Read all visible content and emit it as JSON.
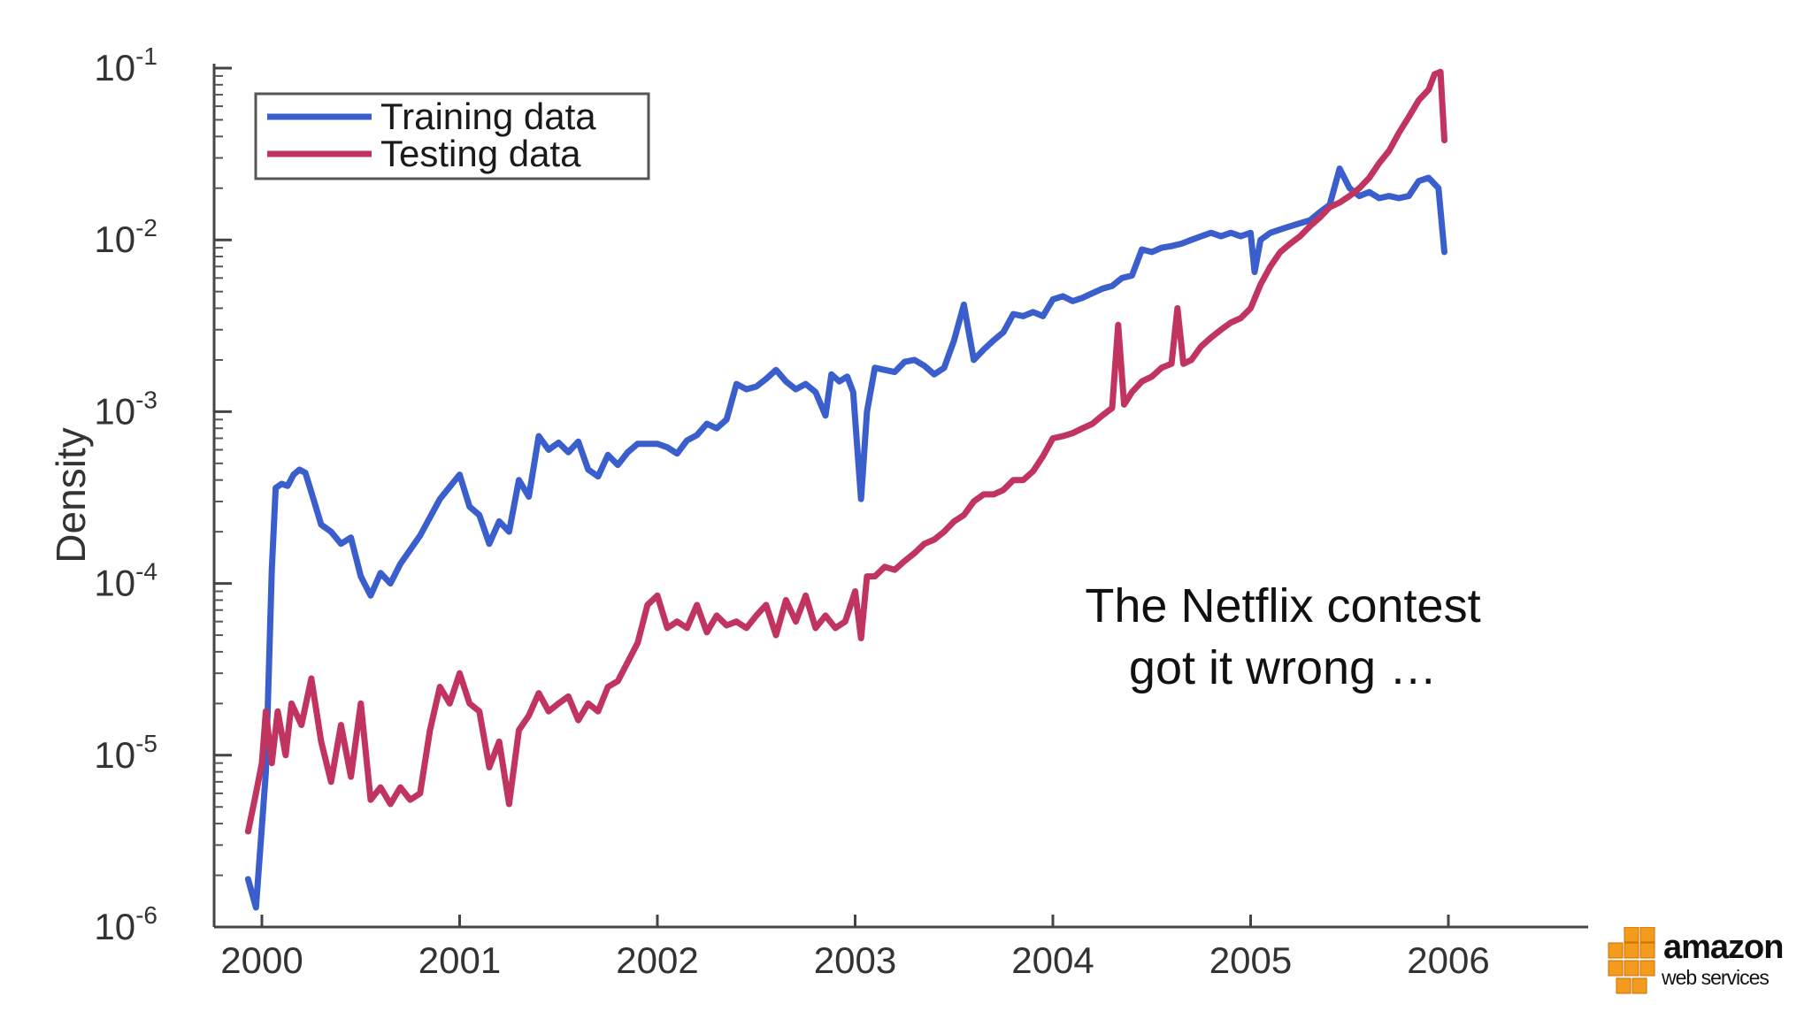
{
  "chart_data": {
    "type": "line",
    "ylabel": "Density",
    "yscale": "log",
    "ylim": [
      1e-06,
      0.1
    ],
    "xlim": [
      2000,
      2007
    ],
    "xticks": [
      "2000",
      "2001",
      "2002",
      "2003",
      "2004",
      "2005",
      "2006"
    ],
    "yticks": [
      {
        "value": 1e-06,
        "base": "10",
        "exp": "-6"
      },
      {
        "value": 1e-05,
        "base": "10",
        "exp": "-5"
      },
      {
        "value": 0.0001,
        "base": "10",
        "exp": "-4"
      },
      {
        "value": 0.001,
        "base": "10",
        "exp": "-3"
      },
      {
        "value": 0.01,
        "base": "10",
        "exp": "-2"
      },
      {
        "value": 0.1,
        "base": "10",
        "exp": "-1"
      }
    ],
    "legend_position": "top-left",
    "series": [
      {
        "name": "Training data",
        "color": "#3a5fcd",
        "points": [
          [
            1999.93,
            1.9e-06
          ],
          [
            1999.97,
            1.3e-06
          ],
          [
            2000.02,
            8e-06
          ],
          [
            2000.05,
            0.00012
          ],
          [
            2000.07,
            0.00036
          ],
          [
            2000.1,
            0.00038
          ],
          [
            2000.13,
            0.00037
          ],
          [
            2000.16,
            0.00043
          ],
          [
            2000.19,
            0.00046
          ],
          [
            2000.22,
            0.00044
          ],
          [
            2000.25,
            0.00034
          ],
          [
            2000.3,
            0.00022
          ],
          [
            2000.35,
            0.0002
          ],
          [
            2000.4,
            0.00017
          ],
          [
            2000.45,
            0.000185
          ],
          [
            2000.5,
            0.00011
          ],
          [
            2000.55,
            8.5e-05
          ],
          [
            2000.6,
            0.000115
          ],
          [
            2000.65,
            0.0001
          ],
          [
            2000.7,
            0.00013
          ],
          [
            2000.8,
            0.00019
          ],
          [
            2000.9,
            0.00031
          ],
          [
            2001.0,
            0.00043
          ],
          [
            2001.05,
            0.00028
          ],
          [
            2001.1,
            0.00025
          ],
          [
            2001.15,
            0.00017
          ],
          [
            2001.2,
            0.00023
          ],
          [
            2001.25,
            0.0002
          ],
          [
            2001.3,
            0.0004
          ],
          [
            2001.35,
            0.00032
          ],
          [
            2001.4,
            0.00072
          ],
          [
            2001.45,
            0.0006
          ],
          [
            2001.5,
            0.00066
          ],
          [
            2001.55,
            0.00058
          ],
          [
            2001.6,
            0.00067
          ],
          [
            2001.65,
            0.00046
          ],
          [
            2001.7,
            0.00042
          ],
          [
            2001.75,
            0.00056
          ],
          [
            2001.8,
            0.00049
          ],
          [
            2001.85,
            0.00058
          ],
          [
            2001.9,
            0.00065
          ],
          [
            2002.0,
            0.00065
          ],
          [
            2002.05,
            0.00062
          ],
          [
            2002.1,
            0.00057
          ],
          [
            2002.15,
            0.00068
          ],
          [
            2002.2,
            0.00073
          ],
          [
            2002.25,
            0.00085
          ],
          [
            2002.3,
            0.0008
          ],
          [
            2002.35,
            0.0009
          ],
          [
            2002.4,
            0.00145
          ],
          [
            2002.45,
            0.00135
          ],
          [
            2002.5,
            0.0014
          ],
          [
            2002.55,
            0.00155
          ],
          [
            2002.6,
            0.00175
          ],
          [
            2002.65,
            0.0015
          ],
          [
            2002.7,
            0.00135
          ],
          [
            2002.75,
            0.00145
          ],
          [
            2002.8,
            0.0013
          ],
          [
            2002.85,
            0.00095
          ],
          [
            2002.88,
            0.00165
          ],
          [
            2002.92,
            0.0015
          ],
          [
            2002.96,
            0.0016
          ],
          [
            2002.99,
            0.0013
          ],
          [
            2003.03,
            0.00031
          ],
          [
            2003.06,
            0.001
          ],
          [
            2003.1,
            0.0018
          ],
          [
            2003.15,
            0.00175
          ],
          [
            2003.2,
            0.0017
          ],
          [
            2003.25,
            0.00195
          ],
          [
            2003.3,
            0.002
          ],
          [
            2003.35,
            0.00185
          ],
          [
            2003.4,
            0.00165
          ],
          [
            2003.45,
            0.0018
          ],
          [
            2003.5,
            0.0026
          ],
          [
            2003.55,
            0.0042
          ],
          [
            2003.6,
            0.002
          ],
          [
            2003.65,
            0.0023
          ],
          [
            2003.7,
            0.0026
          ],
          [
            2003.75,
            0.0029
          ],
          [
            2003.8,
            0.0037
          ],
          [
            2003.85,
            0.0036
          ],
          [
            2003.9,
            0.0038
          ],
          [
            2003.95,
            0.0036
          ],
          [
            2004.0,
            0.0045
          ],
          [
            2004.05,
            0.0047
          ],
          [
            2004.1,
            0.0044
          ],
          [
            2004.15,
            0.0046
          ],
          [
            2004.2,
            0.0049
          ],
          [
            2004.25,
            0.0052
          ],
          [
            2004.3,
            0.0054
          ],
          [
            2004.35,
            0.006
          ],
          [
            2004.4,
            0.0062
          ],
          [
            2004.45,
            0.0088
          ],
          [
            2004.5,
            0.0085
          ],
          [
            2004.55,
            0.009
          ],
          [
            2004.6,
            0.0092
          ],
          [
            2004.65,
            0.0095
          ],
          [
            2004.7,
            0.01
          ],
          [
            2004.75,
            0.0105
          ],
          [
            2004.8,
            0.011
          ],
          [
            2004.85,
            0.0105
          ],
          [
            2004.9,
            0.011
          ],
          [
            2004.95,
            0.0105
          ],
          [
            2005.0,
            0.011
          ],
          [
            2005.02,
            0.0065
          ],
          [
            2005.05,
            0.01
          ],
          [
            2005.1,
            0.011
          ],
          [
            2005.15,
            0.0115
          ],
          [
            2005.2,
            0.012
          ],
          [
            2005.25,
            0.0125
          ],
          [
            2005.3,
            0.013
          ],
          [
            2005.35,
            0.0145
          ],
          [
            2005.4,
            0.016
          ],
          [
            2005.45,
            0.026
          ],
          [
            2005.5,
            0.02
          ],
          [
            2005.55,
            0.018
          ],
          [
            2005.6,
            0.019
          ],
          [
            2005.65,
            0.0175
          ],
          [
            2005.7,
            0.018
          ],
          [
            2005.75,
            0.0175
          ],
          [
            2005.8,
            0.018
          ],
          [
            2005.85,
            0.022
          ],
          [
            2005.9,
            0.023
          ],
          [
            2005.95,
            0.02
          ],
          [
            2005.98,
            0.0085
          ]
        ]
      },
      {
        "name": "Testing data",
        "color": "#c0345f",
        "points": [
          [
            1999.93,
            3.6e-06
          ],
          [
            1999.97,
            6e-06
          ],
          [
            2000.0,
            9e-06
          ],
          [
            2000.02,
            1.8e-05
          ],
          [
            2000.05,
            9e-06
          ],
          [
            2000.08,
            1.8e-05
          ],
          [
            2000.12,
            1e-05
          ],
          [
            2000.15,
            2e-05
          ],
          [
            2000.2,
            1.5e-05
          ],
          [
            2000.25,
            2.8e-05
          ],
          [
            2000.3,
            1.2e-05
          ],
          [
            2000.35,
            7e-06
          ],
          [
            2000.4,
            1.5e-05
          ],
          [
            2000.45,
            7.5e-06
          ],
          [
            2000.5,
            2e-05
          ],
          [
            2000.55,
            5.5e-06
          ],
          [
            2000.6,
            6.5e-06
          ],
          [
            2000.65,
            5.2e-06
          ],
          [
            2000.7,
            6.5e-06
          ],
          [
            2000.75,
            5.5e-06
          ],
          [
            2000.8,
            6e-06
          ],
          [
            2000.85,
            1.4e-05
          ],
          [
            2000.9,
            2.5e-05
          ],
          [
            2000.95,
            2e-05
          ],
          [
            2001.0,
            3e-05
          ],
          [
            2001.05,
            2e-05
          ],
          [
            2001.1,
            1.8e-05
          ],
          [
            2001.15,
            8.5e-06
          ],
          [
            2001.2,
            1.2e-05
          ],
          [
            2001.25,
            5.2e-06
          ],
          [
            2001.3,
            1.4e-05
          ],
          [
            2001.35,
            1.7e-05
          ],
          [
            2001.4,
            2.3e-05
          ],
          [
            2001.45,
            1.8e-05
          ],
          [
            2001.5,
            2e-05
          ],
          [
            2001.55,
            2.2e-05
          ],
          [
            2001.6,
            1.6e-05
          ],
          [
            2001.65,
            2e-05
          ],
          [
            2001.7,
            1.8e-05
          ],
          [
            2001.75,
            2.5e-05
          ],
          [
            2001.8,
            2.7e-05
          ],
          [
            2001.9,
            4.5e-05
          ],
          [
            2001.95,
            7.5e-05
          ],
          [
            2002.0,
            8.5e-05
          ],
          [
            2002.05,
            5.5e-05
          ],
          [
            2002.1,
            6e-05
          ],
          [
            2002.15,
            5.5e-05
          ],
          [
            2002.2,
            7.5e-05
          ],
          [
            2002.25,
            5.2e-05
          ],
          [
            2002.3,
            6.5e-05
          ],
          [
            2002.35,
            5.7e-05
          ],
          [
            2002.4,
            6e-05
          ],
          [
            2002.45,
            5.5e-05
          ],
          [
            2002.5,
            6.5e-05
          ],
          [
            2002.55,
            7.5e-05
          ],
          [
            2002.6,
            5e-05
          ],
          [
            2002.65,
            8e-05
          ],
          [
            2002.7,
            6e-05
          ],
          [
            2002.75,
            8.5e-05
          ],
          [
            2002.8,
            5.5e-05
          ],
          [
            2002.85,
            6.5e-05
          ],
          [
            2002.9,
            5.5e-05
          ],
          [
            2002.95,
            6e-05
          ],
          [
            2003.0,
            9e-05
          ],
          [
            2003.03,
            4.8e-05
          ],
          [
            2003.06,
            0.00011
          ],
          [
            2003.1,
            0.00011
          ],
          [
            2003.15,
            0.000125
          ],
          [
            2003.2,
            0.00012
          ],
          [
            2003.25,
            0.000135
          ],
          [
            2003.3,
            0.00015
          ],
          [
            2003.35,
            0.00017
          ],
          [
            2003.4,
            0.00018
          ],
          [
            2003.45,
            0.0002
          ],
          [
            2003.5,
            0.00023
          ],
          [
            2003.55,
            0.00025
          ],
          [
            2003.6,
            0.0003
          ],
          [
            2003.65,
            0.00033
          ],
          [
            2003.7,
            0.00033
          ],
          [
            2003.75,
            0.00035
          ],
          [
            2003.8,
            0.0004
          ],
          [
            2003.85,
            0.0004
          ],
          [
            2003.9,
            0.00045
          ],
          [
            2003.95,
            0.00055
          ],
          [
            2004.0,
            0.0007
          ],
          [
            2004.05,
            0.00072
          ],
          [
            2004.1,
            0.00075
          ],
          [
            2004.15,
            0.0008
          ],
          [
            2004.2,
            0.00085
          ],
          [
            2004.25,
            0.00095
          ],
          [
            2004.3,
            0.00105
          ],
          [
            2004.33,
            0.0032
          ],
          [
            2004.36,
            0.0011
          ],
          [
            2004.4,
            0.0013
          ],
          [
            2004.45,
            0.0015
          ],
          [
            2004.5,
            0.0016
          ],
          [
            2004.55,
            0.0018
          ],
          [
            2004.6,
            0.0019
          ],
          [
            2004.63,
            0.004
          ],
          [
            2004.66,
            0.0019
          ],
          [
            2004.7,
            0.002
          ],
          [
            2004.75,
            0.0024
          ],
          [
            2004.8,
            0.0027
          ],
          [
            2004.85,
            0.003
          ],
          [
            2004.9,
            0.0033
          ],
          [
            2004.95,
            0.0035
          ],
          [
            2005.0,
            0.004
          ],
          [
            2005.05,
            0.0055
          ],
          [
            2005.1,
            0.007
          ],
          [
            2005.15,
            0.0085
          ],
          [
            2005.2,
            0.0095
          ],
          [
            2005.25,
            0.0105
          ],
          [
            2005.3,
            0.012
          ],
          [
            2005.35,
            0.0135
          ],
          [
            2005.4,
            0.0155
          ],
          [
            2005.45,
            0.0165
          ],
          [
            2005.5,
            0.018
          ],
          [
            2005.55,
            0.02
          ],
          [
            2005.6,
            0.023
          ],
          [
            2005.65,
            0.028
          ],
          [
            2005.7,
            0.033
          ],
          [
            2005.75,
            0.042
          ],
          [
            2005.8,
            0.052
          ],
          [
            2005.85,
            0.065
          ],
          [
            2005.9,
            0.075
          ],
          [
            2005.93,
            0.092
          ],
          [
            2005.96,
            0.095
          ],
          [
            2005.98,
            0.038
          ]
        ]
      }
    ]
  },
  "annotation": {
    "line1": "The Netflix contest",
    "line2": "got it wrong …"
  },
  "logo": {
    "word": "amazon",
    "sub": "web services",
    "box_color": "#f39b1c"
  }
}
